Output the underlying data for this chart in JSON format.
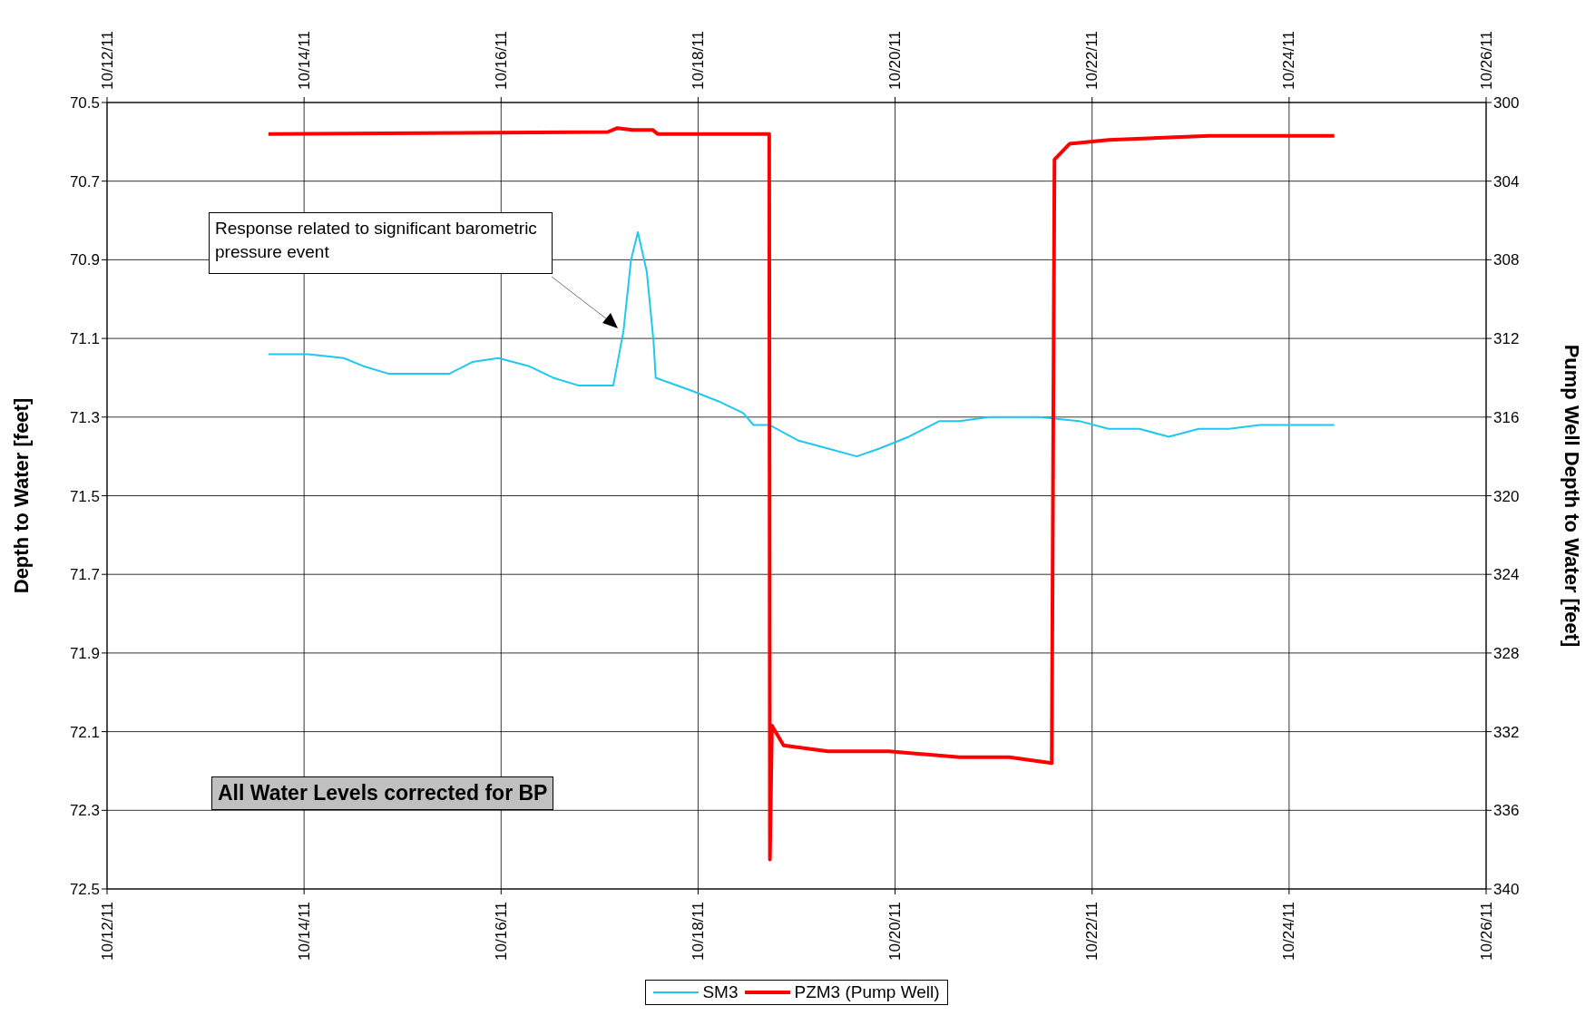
{
  "chart_data": {
    "type": "line",
    "xlim": [
      "--10-12",
      "--10-26"
    ],
    "xticks": [
      {
        "value": "--10-12",
        "label": "10/12/11"
      },
      {
        "value": "--10-14",
        "label": "10/14/11"
      },
      {
        "value": "--10-16",
        "label": "10/16/11"
      },
      {
        "value": "--10-18",
        "label": "10/18/11"
      },
      {
        "value": "--10-20",
        "label": "10/20/11"
      },
      {
        "value": "--10-22",
        "label": "10/22/11"
      },
      {
        "value": "--10-24",
        "label": "10/24/11"
      },
      {
        "value": "--10-26",
        "label": "10/26/11"
      }
    ],
    "x2lim": [
      "--10-12",
      "--10-26"
    ],
    "x2ticks": [
      {
        "value": "--10-12",
        "label": "10/12/11"
      },
      {
        "value": "--10-14",
        "label": "10/14/11"
      },
      {
        "value": "--10-16",
        "label": "10/16/11"
      },
      {
        "value": "--10-18",
        "label": "10/18/11"
      },
      {
        "value": "--10-20",
        "label": "10/20/11"
      },
      {
        "value": "--10-22",
        "label": "10/22/11"
      },
      {
        "value": "--10-24",
        "label": "10/24/11"
      },
      {
        "value": "--10-26",
        "label": "10/26/11"
      }
    ],
    "ylim": [
      72.5,
      70.5
    ],
    "yticks": [
      {
        "value": 70.5,
        "label": "70.5"
      },
      {
        "value": 70.7,
        "label": "70.7"
      },
      {
        "value": 70.9,
        "label": "70.9"
      },
      {
        "value": 71.1,
        "label": "71.1"
      },
      {
        "value": 71.3,
        "label": "71.3"
      },
      {
        "value": 71.5,
        "label": "71.5"
      },
      {
        "value": 71.7,
        "label": "71.7"
      },
      {
        "value": 71.9,
        "label": "71.9"
      },
      {
        "value": 72.1,
        "label": "72.1"
      },
      {
        "value": 72.3,
        "label": "72.3"
      },
      {
        "value": 72.5,
        "label": "72.5"
      }
    ],
    "y2lim": [
      340,
      300
    ],
    "y2ticks": [
      300,
      304,
      308,
      312,
      316,
      320,
      324,
      328,
      332,
      336,
      340
    ],
    "ylabel": "Depth to Water [feet]",
    "y2label": "Pump Well Depth to Water [feet]",
    "grid": true,
    "legend": "bottom",
    "marker": "none",
    "line_style": "solid",
    "annotations": [
      "Response related to significant barometric pressure event",
      "All Water Levels corrected for BP"
    ],
    "series": [
      {
        "name": "SM3",
        "color": "#1ec8f0",
        "x": [
          "--10-13T15:20",
          "--10-14T01:00",
          "--10-14T09:40",
          "--10-14T14:20",
          "--10-14T20:40",
          "--10-15T03:50",
          "--10-15T11:20",
          "--10-15T17:00",
          "--10-15T23:20",
          "--10-16T06:40",
          "--10-16T12:40",
          "--10-16T19:00",
          "--10-17T03:20",
          "--10-17T05:50",
          "--10-17T07:40",
          "--10-17T09:20",
          "--10-17T11:30",
          "--10-17T13:10",
          "--10-17T13:40",
          "--10-17T21:40",
          "--10-18T05:00",
          "--10-18T11:00",
          "--10-18T13:30",
          "--10-18T17:20",
          "--10-19T00:30",
          "--10-19T07:40",
          "--10-19T14:40",
          "--10-19T20:10",
          "--10-20T03:20",
          "--10-20T10:50",
          "--10-20T15:40",
          "--10-20T23:00",
          "--10-21T11:00",
          "--10-21T20:50",
          "--10-22T04:00",
          "--10-22T11:30",
          "--10-22T18:40",
          "--10-23T02:00",
          "--10-23T09:20",
          "--10-23T16:50",
          "--10-24T02:20",
          "--10-24T11:00"
        ],
        "values": [
          71.14,
          71.14,
          71.15,
          71.17,
          71.19,
          71.19,
          71.19,
          71.16,
          71.15,
          71.17,
          71.2,
          71.22,
          71.22,
          71.08,
          70.9,
          70.83,
          70.93,
          71.11,
          71.2,
          71.23,
          71.26,
          71.29,
          71.32,
          71.32,
          71.36,
          71.38,
          71.4,
          71.38,
          71.35,
          71.31,
          71.31,
          71.3,
          71.3,
          71.31,
          71.33,
          71.33,
          71.35,
          71.33,
          71.33,
          71.32,
          71.32,
          71.32
        ]
      },
      {
        "name": "PZM3 (Pump Well)",
        "color": "#ff0000",
        "axis": "y2",
        "x": [
          "--10-13T15:20",
          "--10-17T02:00",
          "--10-17T04:20",
          "--10-17T08:00",
          "--10-17T13:00",
          "--10-17T14:10",
          "--10-18T17:20",
          "--10-18T17:30",
          "--10-18T18:00",
          "--10-18T20:50",
          "--10-19T07:40",
          "--10-19T22:30",
          "--10-20T15:40",
          "--10-21T03:50",
          "--10-21T14:10",
          "--10-21T14:50",
          "--10-21T18:30",
          "--10-22T04:00",
          "--10-23T04:30",
          "--10-24T11:00"
        ],
        "values": [
          301.6,
          301.5,
          301.3,
          301.4,
          301.4,
          301.6,
          301.6,
          338.5,
          331.7,
          332.7,
          333.0,
          333.0,
          333.3,
          333.3,
          333.6,
          302.9,
          302.1,
          301.9,
          301.7,
          301.7
        ]
      }
    ]
  }
}
